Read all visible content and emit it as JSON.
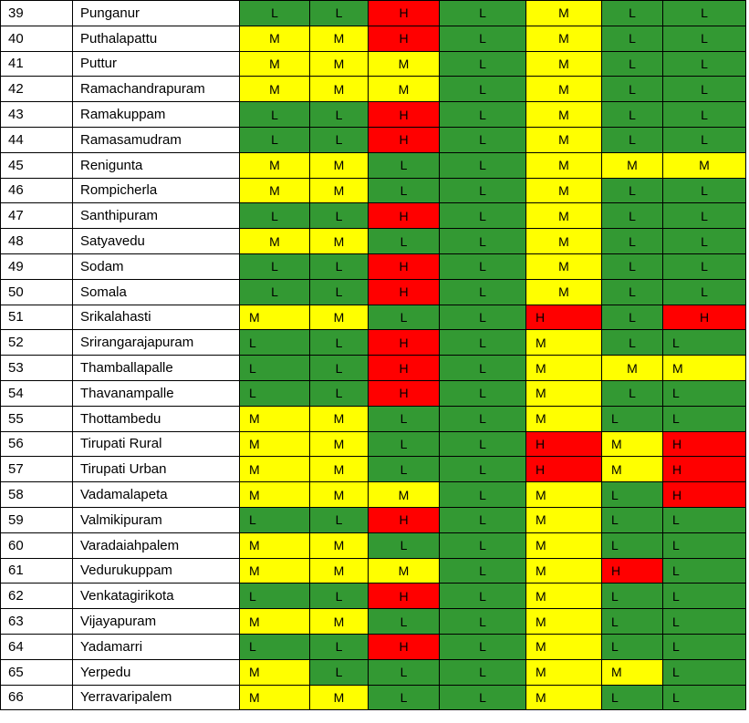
{
  "colors": {
    "L": "#339933",
    "M": "#ffff00",
    "H": "#ff0000"
  },
  "rows": [
    {
      "no": "39",
      "name": "Punganur",
      "levels": [
        "L",
        "L",
        "H",
        "L",
        "M",
        "L",
        "L"
      ]
    },
    {
      "no": "40",
      "name": "Puthalapattu",
      "levels": [
        "M",
        "M",
        "H",
        "L",
        "M",
        "L",
        "L"
      ]
    },
    {
      "no": "41",
      "name": "Puttur",
      "levels": [
        "M",
        "M",
        "M",
        "L",
        "M",
        "L",
        "L"
      ]
    },
    {
      "no": "42",
      "name": "Ramachandrapuram",
      "levels": [
        "M",
        "M",
        "M",
        "L",
        "M",
        "L",
        "L"
      ]
    },
    {
      "no": "43",
      "name": "Ramakuppam",
      "levels": [
        "L",
        "L",
        "H",
        "L",
        "M",
        "L",
        "L"
      ]
    },
    {
      "no": "44",
      "name": "Ramasamudram",
      "levels": [
        "L",
        "L",
        "H",
        "L",
        "M",
        "L",
        "L"
      ]
    },
    {
      "no": "45",
      "name": "Renigunta",
      "levels": [
        "M",
        "M",
        "L",
        "L",
        "M",
        "M",
        "M"
      ]
    },
    {
      "no": "46",
      "name": "Rompicherla",
      "levels": [
        "M",
        "M",
        "L",
        "L",
        "M",
        "L",
        "L"
      ]
    },
    {
      "no": "47",
      "name": "Santhipuram",
      "levels": [
        "L",
        "L",
        "H",
        "L",
        "M",
        "L",
        "L"
      ]
    },
    {
      "no": "48",
      "name": "Satyavedu",
      "levels": [
        "M",
        "M",
        "L",
        "L",
        "M",
        "L",
        "L"
      ]
    },
    {
      "no": "49",
      "name": "Sodam",
      "levels": [
        "L",
        "L",
        "H",
        "L",
        "M",
        "L",
        "L"
      ]
    },
    {
      "no": "50",
      "name": "Somala",
      "levels": [
        "L",
        "L",
        "H",
        "L",
        "M",
        "L",
        "L"
      ]
    },
    {
      "no": "51",
      "name": "Srikalahasti",
      "levels": [
        "M",
        "M",
        "L",
        "L",
        "H",
        "L",
        "H"
      ]
    },
    {
      "no": "52",
      "name": "Srirangarajapuram",
      "levels": [
        "L",
        "L",
        "H",
        "L",
        "M",
        "L",
        "L"
      ]
    },
    {
      "no": "53",
      "name": "Thamballapalle",
      "levels": [
        "L",
        "L",
        "H",
        "L",
        "M",
        "M",
        "M"
      ]
    },
    {
      "no": "54",
      "name": "Thavanampalle",
      "levels": [
        "L",
        "L",
        "H",
        "L",
        "M",
        "L",
        "L"
      ]
    },
    {
      "no": "55",
      "name": "Thottambedu",
      "levels": [
        "M",
        "M",
        "L",
        "L",
        "M",
        "L",
        "L"
      ]
    },
    {
      "no": "56",
      "name": "Tirupati Rural",
      "levels": [
        "M",
        "M",
        "L",
        "L",
        "H",
        "M",
        "H"
      ]
    },
    {
      "no": "57",
      "name": "Tirupati Urban",
      "levels": [
        "M",
        "M",
        "L",
        "L",
        "H",
        "M",
        "H"
      ]
    },
    {
      "no": "58",
      "name": "Vadamalapeta",
      "levels": [
        "M",
        "M",
        "M",
        "L",
        "M",
        "L",
        "H"
      ]
    },
    {
      "no": "59",
      "name": "Valmikipuram",
      "levels": [
        "L",
        "L",
        "H",
        "L",
        "M",
        "L",
        "L"
      ]
    },
    {
      "no": "60",
      "name": "Varadaiahpalem",
      "levels": [
        "M",
        "M",
        "L",
        "L",
        "M",
        "L",
        "L"
      ]
    },
    {
      "no": "61",
      "name": "Vedurukuppam",
      "levels": [
        "M",
        "M",
        "M",
        "L",
        "M",
        "H",
        "L"
      ]
    },
    {
      "no": "62",
      "name": "Venkatagirikota",
      "levels": [
        "L",
        "L",
        "H",
        "L",
        "M",
        "L",
        "L"
      ]
    },
    {
      "no": "63",
      "name": "Vijayapuram",
      "levels": [
        "M",
        "M",
        "L",
        "L",
        "M",
        "L",
        "L"
      ]
    },
    {
      "no": "64",
      "name": "Yadamarri",
      "levels": [
        "L",
        "L",
        "H",
        "L",
        "M",
        "L",
        "L"
      ]
    },
    {
      "no": "65",
      "name": "Yerpedu",
      "levels": [
        "M",
        "L",
        "L",
        "L",
        "M",
        "M",
        "L"
      ]
    },
    {
      "no": "66",
      "name": "Yerravaripalem",
      "levels": [
        "M",
        "M",
        "L",
        "L",
        "M",
        "L",
        "L"
      ]
    }
  ]
}
